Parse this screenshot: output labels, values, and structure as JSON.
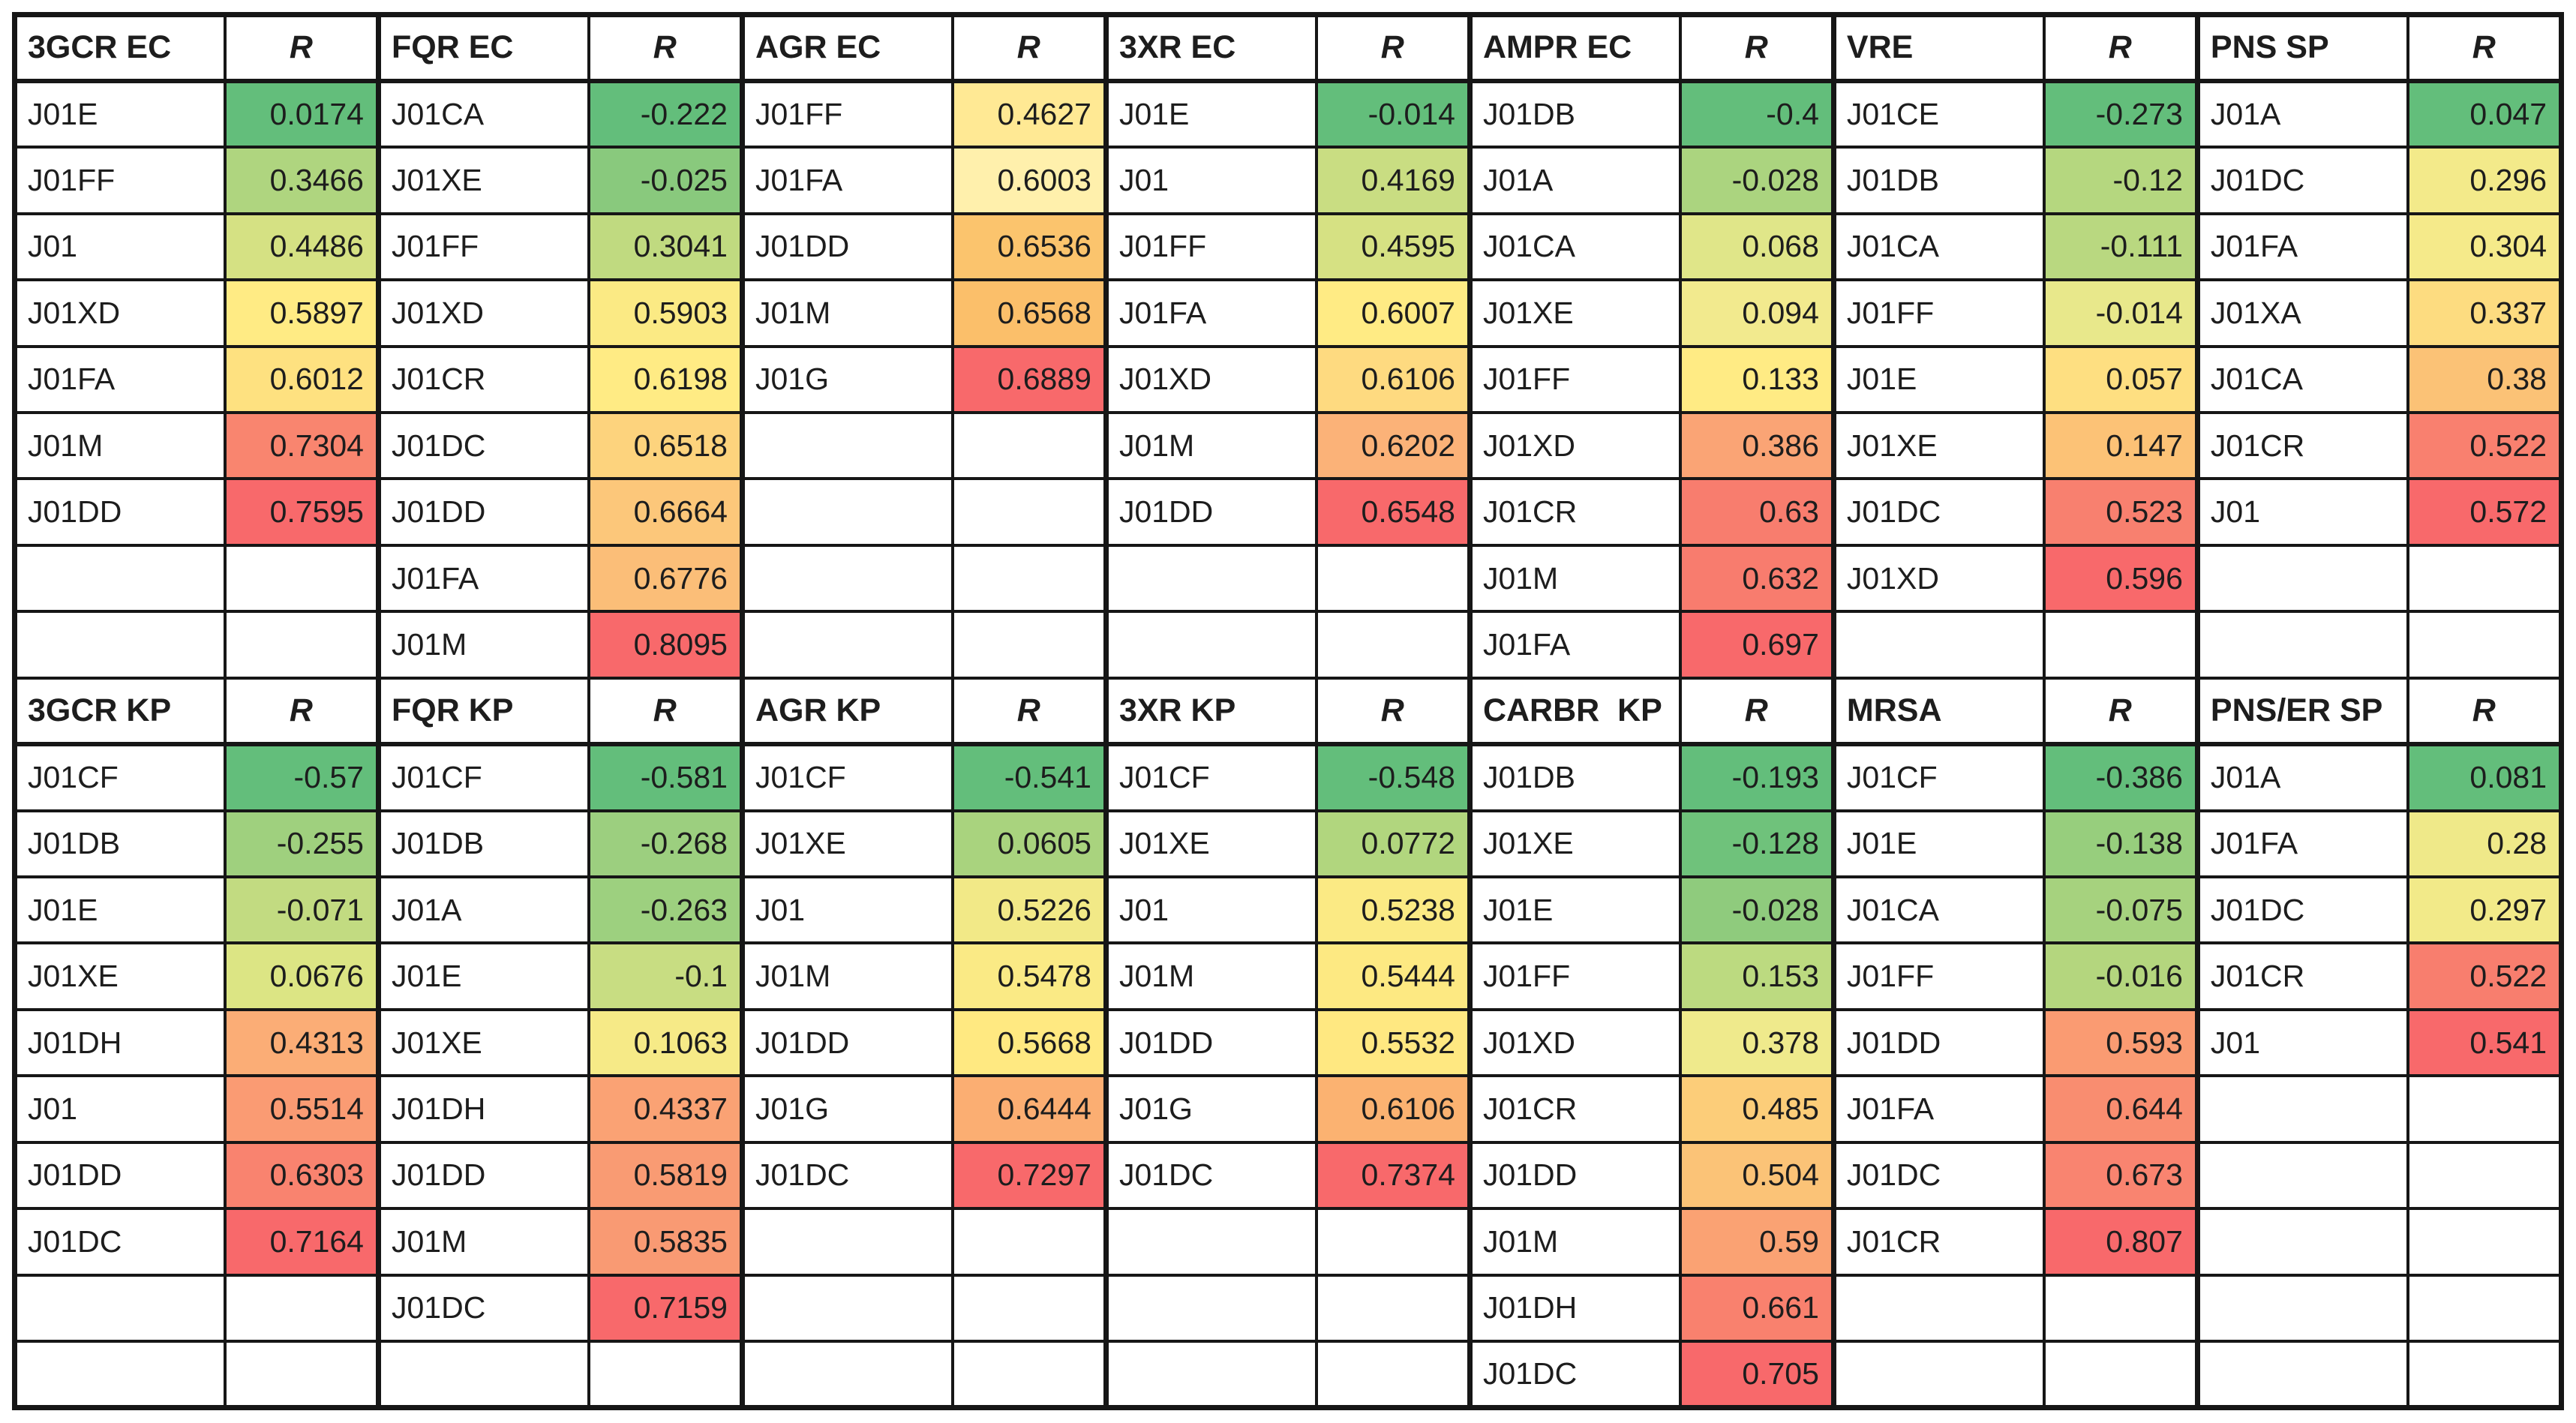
{
  "chart_data": {
    "type": "table",
    "subtype": "heatmap-correlation-table",
    "value_column_header": "R",
    "legend_palette": {
      "low_green": "#63BE7B",
      "mid_yellow": "#FFEB84",
      "high_red": "#F8696B"
    },
    "blocks": [
      {
        "data_rows": 9,
        "columns": [
          {
            "header": "3GCR EC",
            "entries": [
              [
                "J01E",
                "0.0174",
                "#63BE7B"
              ],
              [
                "J01FF",
                "0.3466",
                "#AFD57F"
              ],
              [
                "J01",
                "0.4486",
                "#D5E183"
              ],
              [
                "J01XD",
                "0.5897",
                "#FFEB84"
              ],
              [
                "J01FA",
                "0.6012",
                "#FEE180"
              ],
              [
                "J01M",
                "0.7304",
                "#F9856F"
              ],
              [
                "J01DD",
                "0.7595",
                "#F8696B"
              ]
            ]
          },
          {
            "header": "FQR EC",
            "entries": [
              [
                "J01CA",
                "-0.222",
                "#63BE7B"
              ],
              [
                "J01XE",
                "-0.025",
                "#89C97D"
              ],
              [
                "J01FF",
                "0.3041",
                "#C0DA80"
              ],
              [
                "J01XD",
                "0.5903",
                "#FBEA84"
              ],
              [
                "J01CR",
                "0.6198",
                "#FFEB84"
              ],
              [
                "J01DC",
                "0.6518",
                "#FDD37D"
              ],
              [
                "J01DD",
                "0.6664",
                "#FCC77A"
              ],
              [
                "J01FA",
                "0.6776",
                "#FBBE78"
              ],
              [
                "J01M",
                "0.8095",
                "#F8696B"
              ]
            ]
          },
          {
            "header": "AGR EC",
            "entries": [
              [
                "J01FF",
                "0.4627",
                "#FFE994"
              ],
              [
                "J01FA",
                "0.6003",
                "#FFF0AC"
              ],
              [
                "J01DD",
                "0.6536",
                "#FBC46D"
              ],
              [
                "J01M",
                "0.6568",
                "#FBBF6A"
              ],
              [
                "J01G",
                "0.6889",
                "#F8696B"
              ]
            ]
          },
          {
            "header": "3XR EC",
            "entries": [
              [
                "J01E",
                "-0.014",
                "#63BE7B"
              ],
              [
                "J01",
                "0.4169",
                "#C9DD82"
              ],
              [
                "J01FF",
                "0.4595",
                "#D6E183"
              ],
              [
                "J01FA",
                "0.6007",
                "#FFEB84"
              ],
              [
                "J01XD",
                "0.6106",
                "#FEDA80"
              ],
              [
                "J01M",
                "0.6202",
                "#FBB278"
              ],
              [
                "J01DD",
                "0.6548",
                "#F8696B"
              ]
            ]
          },
          {
            "header": "AMPR EC",
            "entries": [
              [
                "J01DB",
                "-0.4",
                "#63BE7B"
              ],
              [
                "J01A",
                "-0.028",
                "#ABD47F"
              ],
              [
                "J01CA",
                "0.068",
                "#E0E689"
              ],
              [
                "J01XE",
                "0.094",
                "#F2EA8E"
              ],
              [
                "J01FF",
                "0.133",
                "#FFEB84"
              ],
              [
                "J01XD",
                "0.386",
                "#FAA475"
              ],
              [
                "J01CR",
                "0.63",
                "#F87D6E"
              ],
              [
                "J01M",
                "0.632",
                "#F87C6E"
              ],
              [
                "J01FA",
                "0.697",
                "#F8696B"
              ]
            ]
          },
          {
            "header": "VRE",
            "entries": [
              [
                "J01CE",
                "-0.273",
                "#63BE7B"
              ],
              [
                "J01DB",
                "-0.12",
                "#B5D77F"
              ],
              [
                "J01CA",
                "-0.111",
                "#B9D880"
              ],
              [
                "J01FF",
                "-0.014",
                "#E8E88B"
              ],
              [
                "J01E",
                "0.057",
                "#FEDF81"
              ],
              [
                "J01XE",
                "0.147",
                "#FCC276"
              ],
              [
                "J01DC",
                "0.523",
                "#F8806F"
              ],
              [
                "J01XD",
                "0.596",
                "#F8696B"
              ]
            ]
          },
          {
            "header": "PNS SP",
            "entries": [
              [
                "J01A",
                "0.047",
                "#63BE7B"
              ],
              [
                "J01DC",
                "0.296",
                "#F3EA8A"
              ],
              [
                "J01FA",
                "0.304",
                "#F5EA8A"
              ],
              [
                "J01XA",
                "0.337",
                "#FDDC80"
              ],
              [
                "J01CA",
                "0.38",
                "#FBC276"
              ],
              [
                "J01CR",
                "0.522",
                "#F9806F"
              ],
              [
                "J01",
                "0.572",
                "#F8696B"
              ]
            ]
          }
        ]
      },
      {
        "data_rows": 10,
        "columns": [
          {
            "header": "3GCR KP",
            "entries": [
              [
                "J01CF",
                "-0.57",
                "#63BE7B"
              ],
              [
                "J01DB",
                "-0.255",
                "#9FD07E"
              ],
              [
                "J01E",
                "-0.071",
                "#C2DB81"
              ],
              [
                "J01XE",
                "0.0676",
                "#DCE584"
              ],
              [
                "J01DH",
                "0.4313",
                "#FBAD76"
              ],
              [
                "J01",
                "0.5514",
                "#FA9B73"
              ],
              [
                "J01DD",
                "0.6303",
                "#F9836F"
              ],
              [
                "J01DC",
                "0.7164",
                "#F8696B"
              ]
            ]
          },
          {
            "header": "FQR KP",
            "entries": [
              [
                "J01CF",
                "-0.581",
                "#63BE7B"
              ],
              [
                "J01DB",
                "-0.268",
                "#9CCF7F"
              ],
              [
                "J01A",
                "-0.263",
                "#9DD07F"
              ],
              [
                "J01E",
                "-0.1",
                "#C8DD82"
              ],
              [
                "J01XE",
                "0.1063",
                "#F6EA87"
              ],
              [
                "J01DH",
                "0.4337",
                "#FAA274"
              ],
              [
                "J01DD",
                "0.5819",
                "#F99B73"
              ],
              [
                "J01M",
                "0.5835",
                "#F99A73"
              ],
              [
                "J01DC",
                "0.7159",
                "#F8696B"
              ]
            ]
          },
          {
            "header": "AGR KP",
            "entries": [
              [
                "J01CF",
                "-0.541",
                "#63BE7B"
              ],
              [
                "J01XE",
                "0.0605",
                "#A9D37E"
              ],
              [
                "J01",
                "0.5226",
                "#F2E987"
              ],
              [
                "J01M",
                "0.5478",
                "#FAEA85"
              ],
              [
                "J01DD",
                "0.5668",
                "#FFE981"
              ],
              [
                "J01G",
                "0.6444",
                "#FBAE72"
              ],
              [
                "J01DC",
                "0.7297",
                "#F8696B"
              ]
            ]
          },
          {
            "header": "3XR KP",
            "entries": [
              [
                "J01CF",
                "-0.548",
                "#63BE7B"
              ],
              [
                "J01XE",
                "0.0772",
                "#B1D67E"
              ],
              [
                "J01",
                "0.5238",
                "#FBEA84"
              ],
              [
                "J01M",
                "0.5444",
                "#FDE982"
              ],
              [
                "J01DD",
                "0.5532",
                "#FFE881"
              ],
              [
                "J01G",
                "0.6106",
                "#FBB271"
              ],
              [
                "J01DC",
                "0.7374",
                "#F8696B"
              ]
            ]
          },
          {
            "header": "CARBR  KP",
            "entries": [
              [
                "J01DB",
                "-0.193",
                "#63BE7B"
              ],
              [
                "J01XE",
                "-0.128",
                "#6FC27B"
              ],
              [
                "J01E",
                "-0.028",
                "#8FCB7D"
              ],
              [
                "J01FF",
                "0.153",
                "#BCDA80"
              ],
              [
                "J01XD",
                "0.378",
                "#EFEA8C"
              ],
              [
                "J01CR",
                "0.485",
                "#FCCD79"
              ],
              [
                "J01DD",
                "0.504",
                "#FBC377"
              ],
              [
                "J01M",
                "0.59",
                "#FAA273"
              ],
              [
                "J01DH",
                "0.661",
                "#F9816E"
              ],
              [
                "J01DC",
                "0.705",
                "#F8696B"
              ]
            ]
          },
          {
            "header": "MRSA",
            "entries": [
              [
                "J01CF",
                "-0.386",
                "#63BE7B"
              ],
              [
                "J01E",
                "-0.138",
                "#97CE7D"
              ],
              [
                "J01CA",
                "-0.075",
                "#A6D27E"
              ],
              [
                "J01FF",
                "-0.016",
                "#B4D67E"
              ],
              [
                "J01DD",
                "0.593",
                "#FA9B72"
              ],
              [
                "J01FA",
                "0.644",
                "#F98D70"
              ],
              [
                "J01DC",
                "0.673",
                "#F98470"
              ],
              [
                "J01CR",
                "0.807",
                "#F8696B"
              ]
            ]
          },
          {
            "header": "PNS/ER SP",
            "entries": [
              [
                "J01A",
                "0.081",
                "#63BE7B"
              ],
              [
                "J01FA",
                "0.28",
                "#EFE989"
              ],
              [
                "J01DC",
                "0.297",
                "#F2EA89"
              ],
              [
                "J01CR",
                "0.522",
                "#F87E6E"
              ],
              [
                "J01",
                "0.541",
                "#F8696B"
              ]
            ]
          }
        ]
      }
    ]
  }
}
